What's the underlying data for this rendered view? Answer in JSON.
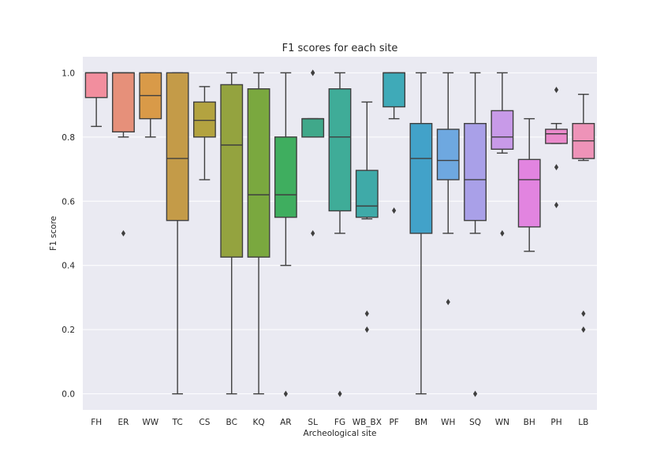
{
  "chart_data": {
    "type": "box",
    "title": "F1 scores for each site",
    "xlabel": "Archeological site",
    "ylabel": "F1 score",
    "ylim": [
      -0.05,
      1.05
    ],
    "yticks": [
      0.0,
      0.2,
      0.4,
      0.6,
      0.8,
      1.0
    ],
    "ytick_labels": [
      "0.0",
      "0.2",
      "0.4",
      "0.6",
      "0.8",
      "1.0"
    ],
    "grid": true,
    "categories": [
      "FH",
      "ER",
      "WW",
      "TC",
      "CS",
      "BC",
      "KQ",
      "AR",
      "SL",
      "FG",
      "WB_BX",
      "PF",
      "BM",
      "WH",
      "SQ",
      "WN",
      "BH",
      "PH",
      "LB"
    ],
    "series": [
      {
        "color": "#f28e9e",
        "box": {
          "whisker_low": 0.833,
          "q1": 0.923,
          "median": 1.0,
          "q3": 1.0,
          "whisker_high": 1.0,
          "outliers": []
        }
      },
      {
        "color": "#e6907a",
        "box": {
          "whisker_low": 0.8,
          "q1": 0.816,
          "median": 1.0,
          "q3": 1.0,
          "whisker_high": 1.0,
          "outliers": [
            0.5
          ]
        }
      },
      {
        "color": "#d99a48",
        "box": {
          "whisker_low": 0.8,
          "q1": 0.857,
          "median": 0.929,
          "q3": 1.0,
          "whisker_high": 1.0,
          "outliers": []
        }
      },
      {
        "color": "#c49b48",
        "box": {
          "whisker_low": 0.0,
          "q1": 0.54,
          "median": 0.733,
          "q3": 1.0,
          "whisker_high": 1.0,
          "outliers": []
        }
      },
      {
        "color": "#b3a340",
        "box": {
          "whisker_low": 0.667,
          "q1": 0.8,
          "median": 0.852,
          "q3": 0.909,
          "whisker_high": 0.957,
          "outliers": []
        }
      },
      {
        "color": "#94a33f",
        "box": {
          "whisker_low": 0.0,
          "q1": 0.426,
          "median": 0.775,
          "q3": 0.963,
          "whisker_high": 1.0,
          "outliers": []
        }
      },
      {
        "color": "#7aa83f",
        "box": {
          "whisker_low": 0.0,
          "q1": 0.426,
          "median": 0.62,
          "q3": 0.95,
          "whisker_high": 1.0,
          "outliers": []
        }
      },
      {
        "color": "#3fae5f",
        "box": {
          "whisker_low": 0.4,
          "q1": 0.55,
          "median": 0.62,
          "q3": 0.8,
          "whisker_high": 1.0,
          "outliers": [
            0.0
          ]
        }
      },
      {
        "color": "#40a88a",
        "box": {
          "whisker_low": 0.8,
          "q1": 0.8,
          "median": 0.857,
          "q3": 0.857,
          "whisker_high": 0.857,
          "outliers": [
            1.0,
            1.0,
            0.5
          ]
        }
      },
      {
        "color": "#3fac98",
        "box": {
          "whisker_low": 0.5,
          "q1": 0.57,
          "median": 0.8,
          "q3": 0.95,
          "whisker_high": 1.0,
          "outliers": [
            0.0
          ]
        }
      },
      {
        "color": "#3faaa8",
        "box": {
          "whisker_low": 0.545,
          "q1": 0.55,
          "median": 0.585,
          "q3": 0.696,
          "whisker_high": 0.909,
          "outliers": [
            0.25,
            0.2
          ]
        }
      },
      {
        "color": "#3faab8",
        "box": {
          "whisker_low": 0.857,
          "q1": 0.894,
          "median": 1.0,
          "q3": 1.0,
          "whisker_high": 1.0,
          "outliers": [
            0.571
          ]
        }
      },
      {
        "color": "#42a2c9",
        "box": {
          "whisker_low": 0.0,
          "q1": 0.5,
          "median": 0.733,
          "q3": 0.842,
          "whisker_high": 1.0,
          "outliers": []
        }
      },
      {
        "color": "#6ea8e0",
        "box": {
          "whisker_low": 0.5,
          "q1": 0.667,
          "median": 0.727,
          "q3": 0.824,
          "whisker_high": 1.0,
          "outliers": [
            0.286
          ]
        }
      },
      {
        "color": "#a9a0e8",
        "box": {
          "whisker_low": 0.5,
          "q1": 0.54,
          "median": 0.667,
          "q3": 0.842,
          "whisker_high": 1.0,
          "outliers": [
            0.0
          ]
        }
      },
      {
        "color": "#c89ae8",
        "box": {
          "whisker_low": 0.75,
          "q1": 0.762,
          "median": 0.8,
          "q3": 0.882,
          "whisker_high": 1.0,
          "outliers": [
            0.5
          ]
        }
      },
      {
        "color": "#e284e0",
        "box": {
          "whisker_low": 0.444,
          "q1": 0.52,
          "median": 0.667,
          "q3": 0.73,
          "whisker_high": 0.857,
          "outliers": []
        }
      },
      {
        "color": "#ea8acb",
        "box": {
          "whisker_low": 0.78,
          "q1": 0.78,
          "median": 0.81,
          "q3": 0.824,
          "whisker_high": 0.842,
          "outliers": [
            0.947,
            0.706,
            0.588
          ]
        }
      },
      {
        "color": "#ee93b8",
        "box": {
          "whisker_low": 0.727,
          "q1": 0.733,
          "median": 0.788,
          "q3": 0.842,
          "whisker_high": 0.933,
          "outliers": [
            0.25,
            0.2
          ]
        }
      }
    ]
  }
}
